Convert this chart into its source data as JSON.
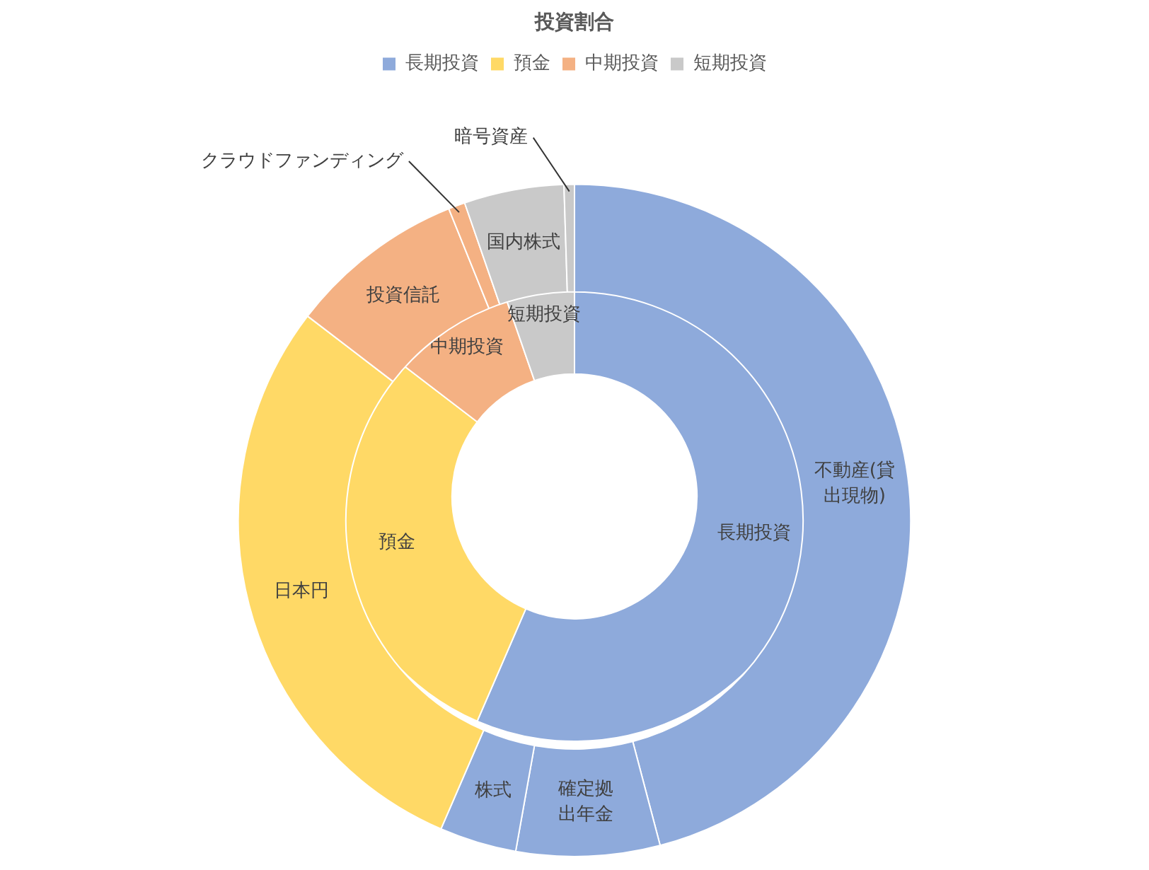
{
  "chart_data": [
    {
      "type": "donut",
      "title": "投資割合",
      "legend": "top",
      "categories": [
        "長期投資",
        "預金",
        "中期投資",
        "短期投資"
      ],
      "values": [
        56.5,
        28.9,
        9.3,
        5.3
      ],
      "colors": [
        "#8eaadb",
        "#ffd966",
        "#f4b183",
        "#c9c9c9"
      ]
    },
    {
      "type": "donut",
      "categories": [
        "不動産(貸出現物)",
        "確定拠出年金",
        "株式",
        "日本円",
        "投資信託",
        "クラウドファンディング",
        "国内株式",
        "暗号資産"
      ],
      "values": [
        45.9,
        6.9,
        3.7,
        28.9,
        8.5,
        0.8,
        4.8,
        0.5
      ],
      "colors": [
        "#8eaadb",
        "#8eaadb",
        "#8eaadb",
        "#ffd966",
        "#f4b183",
        "#f4b183",
        "#c9c9c9",
        "#c9c9c9"
      ]
    }
  ]
}
